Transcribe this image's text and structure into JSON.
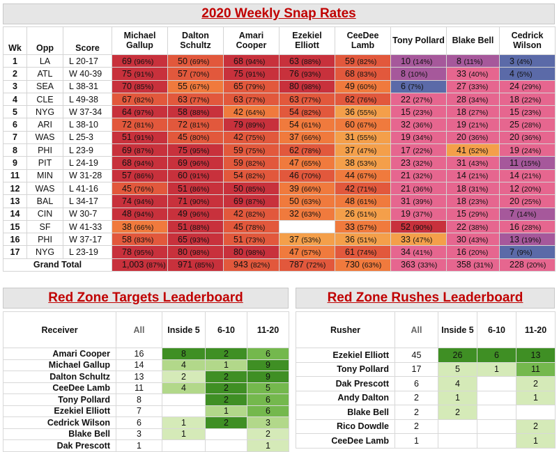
{
  "snap_title": "2020 Weekly Snap Rates",
  "headers": {
    "wk": "Wk",
    "opp": "Opp",
    "score": "Score"
  },
  "players": [
    "Michael Gallup",
    "Dalton Schultz",
    "Amari Cooper",
    "Ezekiel Elliott",
    "CeeDee Lamb",
    "Tony Pollard",
    "Blake Bell",
    "Cedrick Wilson"
  ],
  "colors": {
    "red": "#c8313c",
    "red_orange": "#e2583c",
    "orange": "#f07a3d",
    "light_orange": "#f49f4a",
    "pink": "#e6668f",
    "violet": "#a6589b",
    "blue": "#5b6aa8",
    "green_dark": "#3f8f24",
    "green_mid": "#74b84d",
    "green_light": "#b2d88a",
    "green_pale": "#d5eab8"
  },
  "weeks": [
    {
      "wk": "1",
      "opp": "LA",
      "score": "L 20-17",
      "cells": [
        [
          "69",
          "(96%)"
        ],
        [
          "50",
          "(69%)"
        ],
        [
          "68",
          "(94%)"
        ],
        [
          "63",
          "(88%)"
        ],
        [
          "59",
          "(82%)"
        ],
        [
          "10",
          "(14%)"
        ],
        [
          "8",
          "(11%)"
        ],
        [
          "3",
          "(4%)"
        ]
      ]
    },
    {
      "wk": "2",
      "opp": "ATL",
      "score": "W 40-39",
      "cells": [
        [
          "75",
          "(91%)"
        ],
        [
          "57",
          "(70%)"
        ],
        [
          "75",
          "(91%)"
        ],
        [
          "76",
          "(93%)"
        ],
        [
          "68",
          "(83%)"
        ],
        [
          "8",
          "(10%)"
        ],
        [
          "33",
          "(40%)"
        ],
        [
          "4",
          "(5%)"
        ]
      ]
    },
    {
      "wk": "3",
      "opp": "SEA",
      "score": "L 38-31",
      "cells": [
        [
          "70",
          "(85%)"
        ],
        [
          "55",
          "(67%)"
        ],
        [
          "65",
          "(79%)"
        ],
        [
          "80",
          "(98%)"
        ],
        [
          "49",
          "(60%)"
        ],
        [
          "6",
          "(7%)"
        ],
        [
          "27",
          "(33%)"
        ],
        [
          "24",
          "(29%)"
        ]
      ]
    },
    {
      "wk": "4",
      "opp": "CLE",
      "score": "L 49-38",
      "cells": [
        [
          "67",
          "(82%)"
        ],
        [
          "63",
          "(77%)"
        ],
        [
          "63",
          "(77%)"
        ],
        [
          "63",
          "(77%)"
        ],
        [
          "62",
          "(76%)"
        ],
        [
          "22",
          "(27%)"
        ],
        [
          "28",
          "(34%)"
        ],
        [
          "18",
          "(22%)"
        ]
      ]
    },
    {
      "wk": "5",
      "opp": "NYG",
      "score": "W 37-34",
      "cells": [
        [
          "64",
          "(97%)"
        ],
        [
          "58",
          "(88%)"
        ],
        [
          "42",
          "(64%)"
        ],
        [
          "54",
          "(82%)"
        ],
        [
          "36",
          "(55%)"
        ],
        [
          "15",
          "(23%)"
        ],
        [
          "18",
          "(27%)"
        ],
        [
          "15",
          "(23%)"
        ]
      ]
    },
    {
      "wk": "6",
      "opp": "ARI",
      "score": "L 38-10",
      "cells": [
        [
          "72",
          "(81%)"
        ],
        [
          "72",
          "(81%)"
        ],
        [
          "79",
          "(89%)"
        ],
        [
          "54",
          "(61%)"
        ],
        [
          "60",
          "(67%)"
        ],
        [
          "32",
          "(36%)"
        ],
        [
          "19",
          "(21%)"
        ],
        [
          "25",
          "(28%)"
        ]
      ]
    },
    {
      "wk": "7",
      "opp": "WAS",
      "score": "L 25-3",
      "cells": [
        [
          "51",
          "(91%)"
        ],
        [
          "45",
          "(80%)"
        ],
        [
          "42",
          "(75%)"
        ],
        [
          "37",
          "(66%)"
        ],
        [
          "31",
          "(55%)"
        ],
        [
          "19",
          "(34%)"
        ],
        [
          "20",
          "(36%)"
        ],
        [
          "20",
          "(36%)"
        ]
      ]
    },
    {
      "wk": "8",
      "opp": "PHI",
      "score": "L 23-9",
      "cells": [
        [
          "69",
          "(87%)"
        ],
        [
          "75",
          "(95%)"
        ],
        [
          "59",
          "(75%)"
        ],
        [
          "62",
          "(78%)"
        ],
        [
          "37",
          "(47%)"
        ],
        [
          "17",
          "(22%)"
        ],
        [
          "41",
          "(52%)"
        ],
        [
          "19",
          "(24%)"
        ]
      ]
    },
    {
      "wk": "9",
      "opp": "PIT",
      "score": "L 24-19",
      "cells": [
        [
          "68",
          "(94%)"
        ],
        [
          "69",
          "(96%)"
        ],
        [
          "59",
          "(82%)"
        ],
        [
          "47",
          "(65%)"
        ],
        [
          "38",
          "(53%)"
        ],
        [
          "23",
          "(32%)"
        ],
        [
          "31",
          "(43%)"
        ],
        [
          "11",
          "(15%)"
        ]
      ]
    },
    {
      "wk": "11",
      "opp": "MIN",
      "score": "W 31-28",
      "cells": [
        [
          "57",
          "(86%)"
        ],
        [
          "60",
          "(91%)"
        ],
        [
          "54",
          "(82%)"
        ],
        [
          "46",
          "(70%)"
        ],
        [
          "44",
          "(67%)"
        ],
        [
          "21",
          "(32%)"
        ],
        [
          "14",
          "(21%)"
        ],
        [
          "14",
          "(21%)"
        ]
      ]
    },
    {
      "wk": "12",
      "opp": "WAS",
      "score": "L 41-16",
      "cells": [
        [
          "45",
          "(76%)"
        ],
        [
          "51",
          "(86%)"
        ],
        [
          "50",
          "(85%)"
        ],
        [
          "39",
          "(66%)"
        ],
        [
          "42",
          "(71%)"
        ],
        [
          "21",
          "(36%)"
        ],
        [
          "18",
          "(31%)"
        ],
        [
          "12",
          "(20%)"
        ]
      ]
    },
    {
      "wk": "13",
      "opp": "BAL",
      "score": "L 34-17",
      "cells": [
        [
          "74",
          "(94%)"
        ],
        [
          "71",
          "(90%)"
        ],
        [
          "69",
          "(87%)"
        ],
        [
          "50",
          "(63%)"
        ],
        [
          "48",
          "(61%)"
        ],
        [
          "31",
          "(39%)"
        ],
        [
          "18",
          "(23%)"
        ],
        [
          "20",
          "(25%)"
        ]
      ]
    },
    {
      "wk": "14",
      "opp": "CIN",
      "score": "W 30-7",
      "cells": [
        [
          "48",
          "(94%)"
        ],
        [
          "49",
          "(96%)"
        ],
        [
          "42",
          "(82%)"
        ],
        [
          "32",
          "(63%)"
        ],
        [
          "26",
          "(51%)"
        ],
        [
          "19",
          "(37%)"
        ],
        [
          "15",
          "(29%)"
        ],
        [
          "7",
          "(14%)"
        ]
      ]
    },
    {
      "wk": "15",
      "opp": "SF",
      "score": "W 41-33",
      "cells": [
        [
          "38",
          "(66%)"
        ],
        [
          "51",
          "(88%)"
        ],
        [
          "45",
          "(78%)"
        ],
        null,
        [
          "33",
          "(57%)"
        ],
        [
          "52",
          "(90%)"
        ],
        [
          "22",
          "(38%)"
        ],
        [
          "16",
          "(28%)"
        ]
      ]
    },
    {
      "wk": "16",
      "opp": "PHI",
      "score": "W 37-17",
      "cells": [
        [
          "58",
          "(83%)"
        ],
        [
          "65",
          "(93%)"
        ],
        [
          "51",
          "(73%)"
        ],
        [
          "37",
          "(53%)"
        ],
        [
          "36",
          "(51%)"
        ],
        [
          "33",
          "(47%)"
        ],
        [
          "30",
          "(43%)"
        ],
        [
          "13",
          "(19%)"
        ]
      ]
    },
    {
      "wk": "17",
      "opp": "NYG",
      "score": "L 23-19",
      "cells": [
        [
          "78",
          "(95%)"
        ],
        [
          "80",
          "(98%)"
        ],
        [
          "80",
          "(98%)"
        ],
        [
          "47",
          "(57%)"
        ],
        [
          "61",
          "(74%)"
        ],
        [
          "34",
          "(41%)"
        ],
        [
          "16",
          "(20%)"
        ],
        [
          "7",
          "(9%)"
        ]
      ]
    }
  ],
  "grand_total": {
    "label": "Grand Total",
    "cells": [
      [
        "1,003",
        "(87%)"
      ],
      [
        "971",
        "(85%)"
      ],
      [
        "943",
        "(82%)"
      ],
      [
        "787",
        "(72%)"
      ],
      [
        "730",
        "(63%)"
      ],
      [
        "363",
        "(33%)"
      ],
      [
        "358",
        "(31%)"
      ],
      [
        "228",
        "(20%)"
      ]
    ]
  },
  "targets": {
    "title": "Red Zone Targets Leaderboard",
    "headers": [
      "Receiver",
      "All",
      "Inside 5",
      "6-10",
      "11-20"
    ],
    "rows": [
      [
        "Amari Cooper",
        "16",
        "8",
        "2",
        "6"
      ],
      [
        "Michael Gallup",
        "14",
        "4",
        "1",
        "9"
      ],
      [
        "Dalton Schultz",
        "13",
        "2",
        "2",
        "9"
      ],
      [
        "CeeDee Lamb",
        "11",
        "4",
        "2",
        "5"
      ],
      [
        "Tony Pollard",
        "8",
        "",
        "2",
        "6"
      ],
      [
        "Ezekiel Elliott",
        "7",
        "",
        "1",
        "6"
      ],
      [
        "Cedrick Wilson",
        "6",
        "1",
        "2",
        "3"
      ],
      [
        "Blake Bell",
        "3",
        "1",
        "",
        "2"
      ],
      [
        "Dak Prescott",
        "1",
        "",
        "",
        "1"
      ]
    ]
  },
  "rushes": {
    "title": "Red Zone Rushes Leaderboard",
    "headers": [
      "Rusher",
      "All",
      "Inside 5",
      "6-10",
      "11-20"
    ],
    "rows": [
      [
        "Ezekiel Elliott",
        "45",
        "26",
        "6",
        "13"
      ],
      [
        "Tony Pollard",
        "17",
        "5",
        "1",
        "11"
      ],
      [
        "Dak Prescott",
        "6",
        "4",
        "",
        "2"
      ],
      [
        "Andy Dalton",
        "2",
        "1",
        "",
        "1"
      ],
      [
        "Blake Bell",
        "2",
        "2",
        "",
        ""
      ],
      [
        "Rico Dowdle",
        "2",
        "",
        "",
        "2"
      ],
      [
        "CeeDee Lamb",
        "1",
        "",
        "",
        "1"
      ]
    ]
  }
}
